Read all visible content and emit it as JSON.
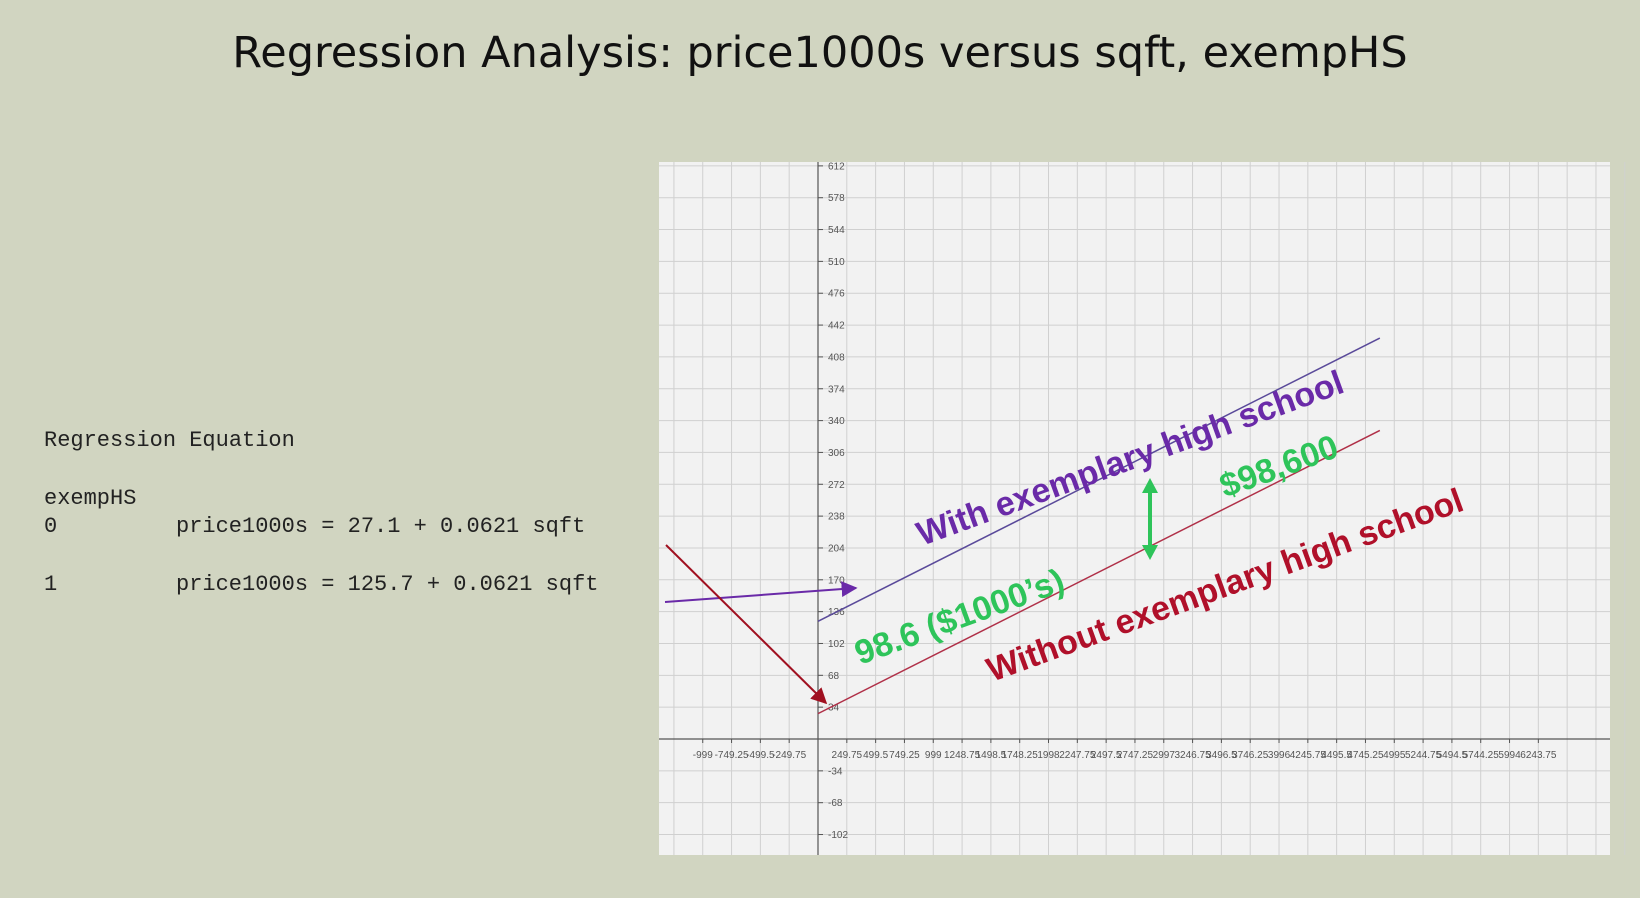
{
  "title": "Regression Analysis: price1000s versus sqft, exempHS",
  "equation_block": {
    "heading": "Regression Equation",
    "variable_label": "exempHS",
    "rows": [
      {
        "level": "0",
        "equation": "price1000s = 27.1 + 0.0621 sqft"
      },
      {
        "level": "1",
        "equation": "price1000s = 125.7 + 0.0621 sqft"
      }
    ]
  },
  "chart_data": {
    "type": "line",
    "title": "",
    "xlabel": "",
    "ylabel": "",
    "xlim": [
      -1249,
      6994
    ],
    "ylim": [
      -117,
      623
    ],
    "grid": true,
    "x_tick_labels": [
      "-999",
      "-749.25",
      "-499.5",
      "-249.75",
      "249.75",
      "499.5",
      "749.25",
      "999",
      "1248.75",
      "1498.5",
      "1748.25",
      "1998",
      "2247.75",
      "2497.5",
      "2747.25",
      "2997",
      "3246.75",
      "3496.5",
      "3746.25",
      "3996",
      "4245.75",
      "4495.5",
      "4745.25",
      "4995",
      "5244.75",
      "5494.5",
      "5744.25",
      "5994",
      "6243.75"
    ],
    "y_tick_labels": [
      "612",
      "578",
      "544",
      "510",
      "476",
      "442",
      "408",
      "374",
      "340",
      "306",
      "272",
      "238",
      "204",
      "170",
      "136",
      "102",
      "68",
      "34",
      "-34",
      "-68",
      "-102"
    ],
    "series": [
      {
        "x": [
          0,
          4870
        ],
        "y": [
          125.7,
          428.1
        ],
        "color": "#5a4a9a"
      },
      {
        "x": [
          0,
          4870
        ],
        "y": [
          27.1,
          329.5
        ],
        "color": "#b03048"
      }
    ],
    "annotations": {
      "with_label": "With exemplary high school",
      "without_label": "Without exemplary high school",
      "difference_label": "98.6 ($1000’s)",
      "dollar_label": "$98,600",
      "with_color": "#6a2aa8",
      "without_color": "#b0102a",
      "green_color": "#2ec45a"
    }
  }
}
